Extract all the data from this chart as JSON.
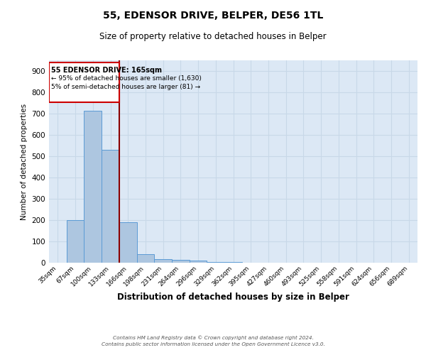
{
  "title": "55, EDENSOR DRIVE, BELPER, DE56 1TL",
  "subtitle": "Size of property relative to detached houses in Belper",
  "xlabel": "Distribution of detached houses by size in Belper",
  "ylabel": "Number of detached properties",
  "bin_labels": [
    "35sqm",
    "67sqm",
    "100sqm",
    "133sqm",
    "166sqm",
    "198sqm",
    "231sqm",
    "264sqm",
    "296sqm",
    "329sqm",
    "362sqm",
    "395sqm",
    "427sqm",
    "460sqm",
    "493sqm",
    "525sqm",
    "558sqm",
    "591sqm",
    "624sqm",
    "656sqm",
    "689sqm"
  ],
  "bar_heights": [
    0,
    200,
    715,
    530,
    190,
    40,
    17,
    13,
    10,
    5,
    2,
    1,
    0,
    0,
    0,
    0,
    0,
    0,
    0,
    0,
    0
  ],
  "bar_color": "#adc6e0",
  "bar_edge_color": "#5b9bd5",
  "property_line_color": "#8b0000",
  "annotation_box_color": "#cc0000",
  "grid_color": "#c8d8e8",
  "background_color": "#dce8f5",
  "ylim": [
    0,
    950
  ],
  "yticks": [
    0,
    100,
    200,
    300,
    400,
    500,
    600,
    700,
    800,
    900
  ],
  "footer_line1": "Contains HM Land Registry data © Crown copyright and database right 2024.",
  "footer_line2": "Contains public sector information licensed under the Open Government Licence v3.0.",
  "ann_line1": "55 EDENSOR DRIVE: 165sqm",
  "ann_line2": "← 95% of detached houses are smaller (1,630)",
  "ann_line3": "5% of semi-detached houses are larger (81) →"
}
